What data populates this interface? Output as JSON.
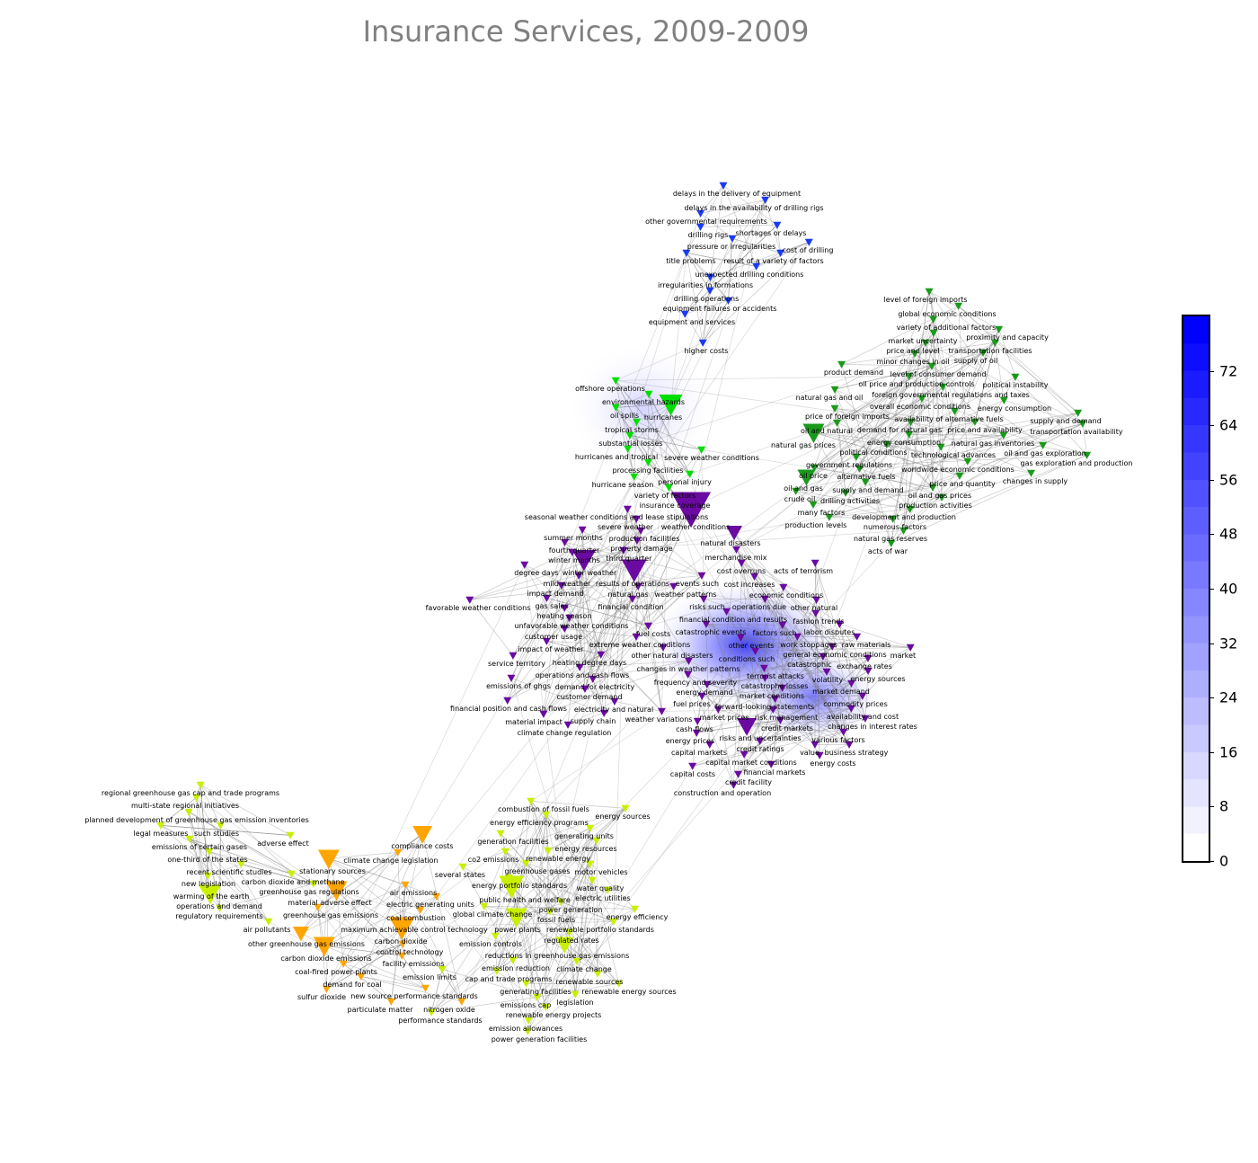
{
  "title": "Insurance Services, 2009-2009",
  "colorbar": {
    "ticks": [
      "0",
      "8",
      "16",
      "24",
      "32",
      "40",
      "48",
      "56",
      "64",
      "72"
    ],
    "max": 80,
    "low_color": "#ffffff",
    "high_color": "#0000ff"
  },
  "groups": [
    {
      "name": "blue",
      "color": "#1a3cf0",
      "labels": [
        "delays in the delivery of equipment",
        "delays in the availability of drilling rigs",
        "other governmental requirements",
        "drilling rigs",
        "shortages or delays",
        "pressure or irregularities",
        "title problems",
        "result of a variety of factors",
        "unexpected drilling conditions",
        "cost of drilling",
        "irregularities in formations",
        "drilling operations",
        "equipment failures or accidents",
        "equipment and services",
        "higher costs"
      ]
    },
    {
      "name": "bright-green",
      "color": "#00dd00",
      "labels": [
        "offshore operations",
        "environmental hazards",
        "oil spills",
        "tropical storms",
        "substantial losses",
        "hurricanes and tropical",
        "hurricanes",
        "severe weather conditions",
        "processing facilities",
        "hurricane season",
        "personal injury",
        "variety of factors",
        "insurance coverage"
      ]
    },
    {
      "name": "purple-weather",
      "color": "#6a0aa0",
      "labels": [
        "seasonal weather conditions and lease stipulations",
        "severe weather",
        "production facilities",
        "weather conditions",
        "summer months",
        "property damage",
        "fourth quarter",
        "third quarter",
        "winter months",
        "winter weather",
        "mild weather",
        "results of operations",
        "impact demand",
        "natural gas",
        "degree days",
        "gas sales",
        "financial condition",
        "heating season",
        "unfavorable weather conditions",
        "favorable weather conditions",
        "customer usage",
        "weather patterns",
        "extreme weather conditions",
        "impact of weather",
        "events such",
        "heating degree days",
        "changes in weather patterns",
        "other natural disasters",
        "operations and cash flows",
        "fuel costs",
        "service territory",
        "demand for electricity",
        "customer demand",
        "electricity and natural",
        "weather variations",
        "emissions of ghgs",
        "supply chain",
        "financial position and cash flows",
        "material impact",
        "climate change regulation"
      ]
    },
    {
      "name": "purple-market",
      "color": "#6a0aa0",
      "labels": [
        "natural disasters",
        "merchandise mix",
        "cost overruns",
        "cost increases",
        "acts of terrorism",
        "economic conditions",
        "operations due",
        "financial condition and results",
        "other natural",
        "risks such",
        "catastrophic events",
        "fashion trends",
        "factors such",
        "labor disputes",
        "other events",
        "conditions such",
        "work stoppages",
        "general economic conditions",
        "raw materials",
        "terrorist attacks",
        "catastrophic",
        "frequency and severity",
        "exchange rates",
        "catastrophe losses",
        "volatility",
        "energy demand",
        "energy sources",
        "market",
        "market demand",
        "market conditions",
        "forward-looking statements",
        "fuel prices",
        "commodity prices",
        "market prices",
        "risk management",
        "credit markets",
        "availability and cost",
        "risks and uncertainties",
        "cash flows",
        "changes in interest rates",
        "energy prices",
        "credit ratings",
        "various factors",
        "capital market conditions",
        "value",
        "business strategy",
        "financial markets",
        "capital markets",
        "credit facility",
        "capital costs",
        "energy costs",
        "construction and operation"
      ]
    },
    {
      "name": "dark-green",
      "color": "#1a9a1a",
      "labels": [
        "level of foreign imports",
        "global economic conditions",
        "variety of additional factors",
        "market uncertainty",
        "proximity and capacity",
        "price and level",
        "minor changes in oil",
        "transportation facilities",
        "level of consumer demand",
        "oil price and production controls",
        "foreign governmental regulations and taxes",
        "overall economic conditions",
        "product demand",
        "supply of oil",
        "natural gas and oil",
        "availability of alternative fuels",
        "political instability",
        "price of foreign imports",
        "energy consumption",
        "demand for natural gas",
        "price and availability",
        "energy consumption",
        "natural gas inventories",
        "technological advances",
        "oil and natural",
        "worldwide economic conditions",
        "political conditions",
        "supply and demand",
        "government regulations",
        "oil and gas exploration",
        "alternative fuels",
        "transportation availability",
        "natural gas prices",
        "price and quantity",
        "oil and gas prices",
        "supply and demand",
        "gas exploration and production",
        "oil price",
        "changes in supply",
        "oil and gas",
        "production activities",
        "drilling activities",
        "development and production",
        "numerous factors",
        "many factors",
        "crude oil",
        "natural gas reserves",
        "production levels",
        "acts of war"
      ]
    },
    {
      "name": "yellow-left",
      "color": "#c8f000",
      "labels": [
        "regional greenhouse gas cap and trade programs",
        "multi-state regional initiatives",
        "planned development of greenhouse gas emission inventories",
        "such studies",
        "emissions of certain gases",
        "legal measures",
        "one-third of the states",
        "adverse effect",
        "recent scientific studies",
        "new legislation",
        "warming of the earth",
        "carbon dioxide and methane",
        "operations and demand",
        "greenhouse gas regulations",
        "regulatory requirements",
        "air pollutants"
      ]
    },
    {
      "name": "orange",
      "color": "#ffa500",
      "labels": [
        "compliance costs",
        "climate change legislation",
        "stationary sources",
        "material adverse effect",
        "greenhouse gas emissions",
        "other greenhouse gas emissions",
        "carbon dioxide",
        "air emissions",
        "electric generating units",
        "maximum achievable control technology",
        "control technology",
        "coal combustion",
        "carbon dioxide emissions",
        "facility emissions",
        "coal-fired power plants",
        "demand for coal",
        "new source performance standards",
        "particulate matter",
        "sulfur dioxide",
        "nitrogen oxide"
      ]
    },
    {
      "name": "yellow-right",
      "color": "#c8f000",
      "labels": [
        "combustion of fossil fuels",
        "energy efficiency programs",
        "energy sources",
        "generating units",
        "energy resources",
        "generation facilities",
        "renewable energy",
        "greenhouse gases",
        "energy portfolio standards",
        "motor vehicles",
        "public health and welfare",
        "several states",
        "co2 emissions",
        "global climate change",
        "power generation",
        "water quality",
        "electric utilities",
        "fossil fuels",
        "power plants",
        "renewable portfolio standards",
        "regulated rates",
        "emission controls",
        "reductions in greenhouse gas emissions",
        "emission reduction",
        "energy efficiency",
        "cap and trade programs",
        "climate change",
        "renewable sources",
        "emission limits",
        "generating facilities",
        "emissions cap",
        "legislation",
        "renewable energy sources",
        "renewable energy projects",
        "emission allowances",
        "performance standards",
        "power generation facilities"
      ]
    }
  ]
}
